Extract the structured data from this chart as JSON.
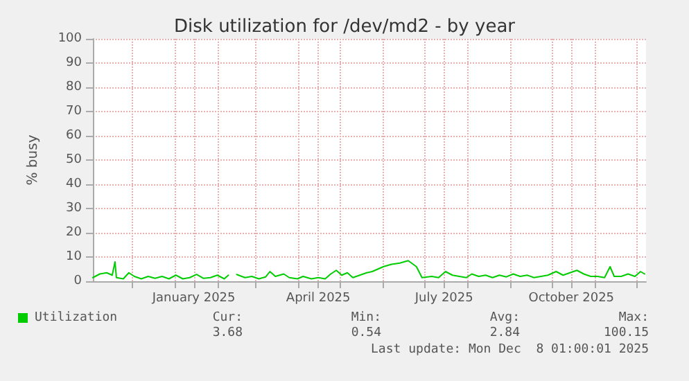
{
  "chart_data": {
    "type": "line",
    "title": "Disk utilization for /dev/md2 - by year",
    "ylabel": "% busy",
    "x": [
      "2024-11-03",
      "2024-11-08",
      "2024-11-13",
      "2024-11-17",
      "2024-11-19",
      "2024-11-20",
      "2024-11-25",
      "2024-11-29",
      "2024-12-03",
      "2024-12-08",
      "2024-12-13",
      "2024-12-18",
      "2024-12-23",
      "2024-12-28",
      "2025-01-02",
      "2025-01-07",
      "2025-01-12",
      "2025-01-17",
      "2025-01-22",
      "2025-01-27",
      "2025-02-01",
      "2025-02-06",
      "2025-02-09",
      "2025-02-12",
      "2025-02-15",
      "2025-02-21",
      "2025-02-26",
      "2025-03-03",
      "2025-03-08",
      "2025-03-11",
      "2025-03-15",
      "2025-03-21",
      "2025-03-25",
      "2025-03-31",
      "2025-04-04",
      "2025-04-10",
      "2025-04-15",
      "2025-04-20",
      "2025-04-24",
      "2025-04-28",
      "2025-05-02",
      "2025-05-06",
      "2025-05-10",
      "2025-05-15",
      "2025-05-20",
      "2025-05-24",
      "2025-06-01",
      "2025-06-07",
      "2025-06-13",
      "2025-06-19",
      "2025-06-25",
      "2025-06-29",
      "2025-07-06",
      "2025-07-11",
      "2025-07-16",
      "2025-07-21",
      "2025-07-26",
      "2025-07-31",
      "2025-08-04",
      "2025-08-09",
      "2025-08-14",
      "2025-08-19",
      "2025-08-24",
      "2025-08-29",
      "2025-09-03",
      "2025-09-08",
      "2025-09-13",
      "2025-09-18",
      "2025-09-23",
      "2025-09-28",
      "2025-10-04",
      "2025-10-09",
      "2025-10-14",
      "2025-10-19",
      "2025-10-24",
      "2025-10-29",
      "2025-11-03",
      "2025-11-08",
      "2025-11-12",
      "2025-11-15",
      "2025-11-20",
      "2025-11-25",
      "2025-11-30",
      "2025-12-04",
      "2025-12-07"
    ],
    "series": [
      {
        "name": "Utilization",
        "color": "#00cc00",
        "values": [
          1.5,
          3,
          3.5,
          2.5,
          8,
          1.5,
          1,
          3.5,
          2,
          1,
          2,
          1.2,
          2,
          1,
          2.5,
          1,
          1.5,
          2.8,
          1.2,
          1.5,
          2.5,
          1,
          2.5,
          null,
          2.8,
          1.5,
          2,
          1,
          1.8,
          4,
          2,
          3,
          1.5,
          1,
          2,
          1,
          1.5,
          1,
          3,
          4.5,
          2.5,
          3.5,
          1.5,
          2.5,
          3.5,
          4,
          6,
          7,
          7.5,
          8.5,
          6,
          1.5,
          2,
          1.5,
          4,
          2.5,
          2,
          1.5,
          3,
          2,
          2.5,
          1.5,
          2.5,
          1.8,
          3,
          2,
          2.5,
          1.5,
          2,
          2.5,
          4,
          2.5,
          3.5,
          4.5,
          3,
          2,
          2,
          1.5,
          6,
          2,
          2,
          3,
          2,
          4,
          3
        ]
      }
    ],
    "xlim": [
      "2024-11-03",
      "2025-12-08"
    ],
    "xticks": [
      {
        "value": "2024-12-01",
        "label": null
      },
      {
        "value": "2025-01-01",
        "label": null
      },
      {
        "value": "2025-01-15",
        "label": "January 2025"
      },
      {
        "value": "2025-02-01",
        "label": null
      },
      {
        "value": "2025-03-01",
        "label": null
      },
      {
        "value": "2025-04-01",
        "label": null
      },
      {
        "value": "2025-04-15",
        "label": "April 2025"
      },
      {
        "value": "2025-05-01",
        "label": null
      },
      {
        "value": "2025-06-01",
        "label": null
      },
      {
        "value": "2025-07-01",
        "label": null
      },
      {
        "value": "2025-07-15",
        "label": "July 2025"
      },
      {
        "value": "2025-08-01",
        "label": null
      },
      {
        "value": "2025-09-01",
        "label": null
      },
      {
        "value": "2025-10-01",
        "label": null
      },
      {
        "value": "2025-10-15",
        "label": "October 2025"
      },
      {
        "value": "2025-11-01",
        "label": null
      },
      {
        "value": "2025-12-01",
        "label": null
      }
    ],
    "ylim": [
      0,
      100
    ],
    "yticks": [
      0,
      10,
      20,
      30,
      40,
      50,
      60,
      70,
      80,
      90,
      100
    ],
    "grid": true,
    "legend": "bottom left",
    "marker": "none",
    "line_style": "solid",
    "annotations": [
      "Cur:",
      "Min:",
      "Avg:",
      "Max:",
      "3.68",
      "0.54",
      "2.84",
      "100.15",
      "Last update: Mon Dec  8 01:00:01 2025"
    ]
  }
}
